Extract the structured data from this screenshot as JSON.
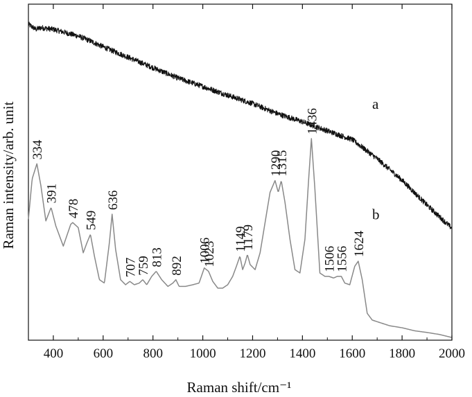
{
  "chart_data": {
    "type": "line",
    "title": "",
    "xlabel": "Raman shift/cm⁻¹",
    "ylabel": "Raman intensity/arb. unit",
    "xlim": [
      300,
      2000
    ],
    "ylim": [
      0,
      100
    ],
    "xticks": [
      400,
      600,
      800,
      1000,
      1200,
      1400,
      1600,
      1800,
      2000
    ],
    "xtick_labels": [
      "400",
      "600",
      "800",
      "1000",
      "1200",
      "1400",
      "1600",
      "1800",
      "2000"
    ],
    "grid": false,
    "series": [
      {
        "name": "a",
        "color": "#111111",
        "noisy": true,
        "x": [
          300,
          330,
          350,
          400,
          450,
          500,
          550,
          600,
          700,
          800,
          900,
          1000,
          1100,
          1200,
          1300,
          1400,
          1500,
          1600,
          1700,
          1800,
          1900,
          2000
        ],
        "y": [
          94,
          92.5,
          93,
          92.5,
          91.5,
          90.5,
          89,
          87.3,
          84.2,
          81.1,
          78,
          75.5,
          72.9,
          70.4,
          67.4,
          65,
          62.3,
          59.7,
          54,
          47.6,
          40.2,
          33.3
        ]
      },
      {
        "name": "b",
        "color": "#888888",
        "noisy": false,
        "x": [
          300,
          315,
          334,
          350,
          370,
          391,
          410,
          440,
          470,
          478,
          500,
          520,
          535,
          549,
          565,
          585,
          605,
          625,
          636,
          650,
          670,
          690,
          707,
          725,
          745,
          759,
          775,
          795,
          813,
          835,
          860,
          880,
          892,
          905,
          930,
          960,
          985,
          1006,
          1023,
          1040,
          1060,
          1080,
          1100,
          1120,
          1135,
          1149,
          1160,
          1170,
          1179,
          1190,
          1210,
          1230,
          1250,
          1270,
          1290,
          1303,
          1315,
          1330,
          1350,
          1370,
          1390,
          1410,
          1425,
          1436,
          1450,
          1470,
          1490,
          1506,
          1525,
          1540,
          1556,
          1570,
          1590,
          1610,
          1624,
          1640,
          1660,
          1680,
          1700,
          1750,
          1800,
          1850,
          1900,
          1950,
          2000
        ],
        "y": [
          36,
          48,
          52.5,
          46,
          35.5,
          39.5,
          34,
          28,
          34.5,
          35,
          33.5,
          26,
          29,
          31.5,
          25,
          18,
          17,
          29,
          37.5,
          27,
          18,
          16.5,
          17.5,
          16.5,
          17,
          18,
          16.5,
          19,
          20.5,
          18,
          16,
          17,
          18,
          16,
          16,
          16.5,
          17,
          21.5,
          20.5,
          17.5,
          15.5,
          15.5,
          16.5,
          19,
          22,
          25,
          21,
          23,
          25.5,
          22.5,
          21,
          26,
          35,
          44,
          47.5,
          44,
          47.5,
          41,
          30,
          21,
          20,
          30,
          48,
          60,
          45,
          20,
          19,
          19,
          18.5,
          19,
          19,
          17,
          16.5,
          22,
          23.5,
          18,
          8,
          6,
          5.5,
          4.3,
          3.7,
          2.8,
          2.3,
          1.7,
          0.8
        ]
      }
    ],
    "peak_labels": [
      {
        "x": 334,
        "text": "334",
        "series": "b"
      },
      {
        "x": 391,
        "text": "391",
        "series": "b"
      },
      {
        "x": 478,
        "text": "478",
        "series": "b"
      },
      {
        "x": 549,
        "text": "549",
        "series": "b"
      },
      {
        "x": 636,
        "text": "636",
        "series": "b"
      },
      {
        "x": 707,
        "text": "707",
        "series": "b"
      },
      {
        "x": 759,
        "text": "759",
        "series": "b"
      },
      {
        "x": 813,
        "text": "813",
        "series": "b"
      },
      {
        "x": 892,
        "text": "892",
        "series": "b"
      },
      {
        "x": 1006,
        "text": "1006",
        "series": "b"
      },
      {
        "x": 1023,
        "text": "1023",
        "series": "b"
      },
      {
        "x": 1149,
        "text": "1149",
        "series": "b"
      },
      {
        "x": 1179,
        "text": "1179",
        "series": "b"
      },
      {
        "x": 1290,
        "text": "1290",
        "series": "b"
      },
      {
        "x": 1315,
        "text": "1315",
        "series": "b"
      },
      {
        "x": 1436,
        "text": "1436",
        "series": "b"
      },
      {
        "x": 1506,
        "text": "1506",
        "series": "b"
      },
      {
        "x": 1556,
        "text": "1556",
        "series": "b"
      },
      {
        "x": 1624,
        "text": "1624",
        "series": "b"
      }
    ],
    "series_labels": [
      {
        "text": "a",
        "series": "a"
      },
      {
        "text": "b",
        "series": "b"
      }
    ]
  }
}
